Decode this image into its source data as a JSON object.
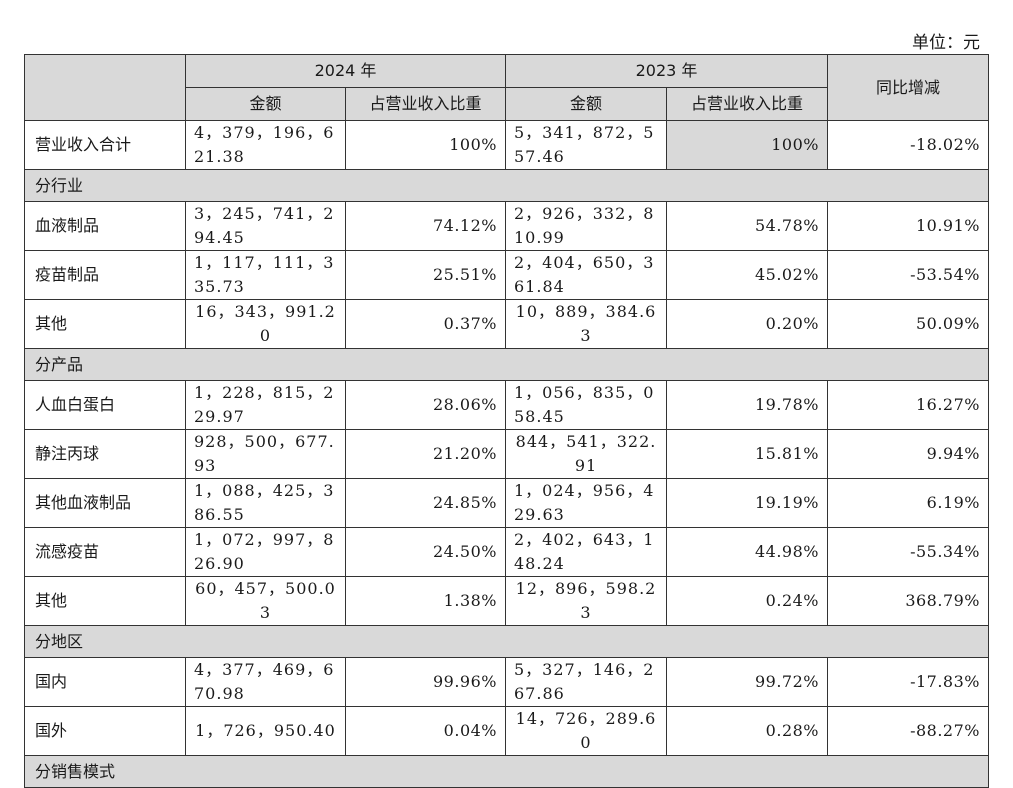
{
  "unit_label": "单位：元",
  "header": {
    "year_2024": "2024 年",
    "year_2023": "2023 年",
    "amount": "金额",
    "ratio": "占营业收入比重",
    "yoy": "同比增减"
  },
  "total": {
    "label": "营业收入合计",
    "amt_2024": "4，379，196，621.38",
    "pct_2024": "100%",
    "amt_2023": "5，341，872，557.46",
    "pct_2023": "100%",
    "yoy": "-18.02%"
  },
  "sections": {
    "industry": "分行业",
    "product": "分产品",
    "region": "分地区",
    "sales_mode": "分销售模式"
  },
  "industry_rows": [
    {
      "label": "血液制品",
      "amt_2024": "3，245，741，294.45",
      "pct_2024": "74.12%",
      "amt_2023": "2，926，332，810.99",
      "pct_2023": "54.78%",
      "yoy": "10.91%"
    },
    {
      "label": "疫苗制品",
      "amt_2024": "1，117，111，335.73",
      "pct_2024": "25.51%",
      "amt_2023": "2，404，650，361.84",
      "pct_2023": "45.02%",
      "yoy": "-53.54%"
    },
    {
      "label": "其他",
      "amt_2024": "16，343，991.20",
      "pct_2024": "0.37%",
      "amt_2023": "10，889，384.63",
      "pct_2023": "0.20%",
      "yoy": "50.09%"
    }
  ],
  "product_rows": [
    {
      "label": "人血白蛋白",
      "amt_2024": "1，228，815，229.97",
      "pct_2024": "28.06%",
      "amt_2023": "1，056，835，058.45",
      "pct_2023": "19.78%",
      "yoy": "16.27%"
    },
    {
      "label": "静注丙球",
      "amt_2024": "928，500，677.93",
      "pct_2024": "21.20%",
      "amt_2023": "844，541，322.91",
      "pct_2023": "15.81%",
      "yoy": "9.94%"
    },
    {
      "label": "其他血液制品",
      "amt_2024": "1，088，425，386.55",
      "pct_2024": "24.85%",
      "amt_2023": "1，024，956，429.63",
      "pct_2023": "19.19%",
      "yoy": "6.19%"
    },
    {
      "label": "流感疫苗",
      "amt_2024": "1，072，997，826.90",
      "pct_2024": "24.50%",
      "amt_2023": "2，402，643，148.24",
      "pct_2023": "44.98%",
      "yoy": "-55.34%"
    },
    {
      "label": "其他",
      "amt_2024": "60，457，500.03",
      "pct_2024": "1.38%",
      "amt_2023": "12，896，598.23",
      "pct_2023": "0.24%",
      "yoy": "368.79%"
    }
  ],
  "region_rows": [
    {
      "label": "国内",
      "amt_2024": "4，377，469，670.98",
      "pct_2024": "99.96%",
      "amt_2023": "5，327，146，267.86",
      "pct_2023": "99.72%",
      "yoy": "-17.83%"
    },
    {
      "label": "国外",
      "amt_2024": "1，726，950.40",
      "pct_2024": "0.04%",
      "amt_2023": "14，726，289.60",
      "pct_2023": "0.28%",
      "yoy": "-88.27%"
    }
  ]
}
